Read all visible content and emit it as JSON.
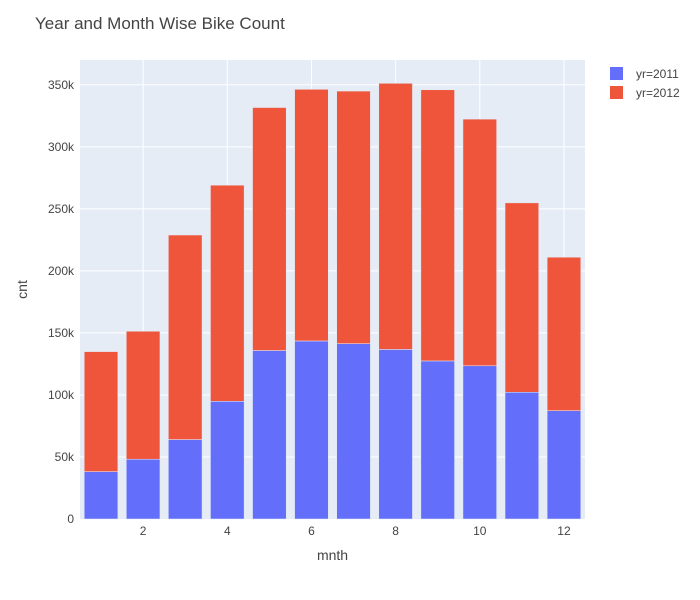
{
  "chart_data": {
    "type": "bar",
    "stacked": true,
    "title": "Year and Month Wise Bike Count",
    "xlabel": "mnth",
    "ylabel": "cnt",
    "x": [
      1,
      2,
      3,
      4,
      5,
      6,
      7,
      8,
      9,
      10,
      11,
      12
    ],
    "x_ticks": [
      2,
      4,
      6,
      8,
      10,
      12
    ],
    "x_tick_labels": [
      "2",
      "4",
      "6",
      "8",
      "10",
      "12"
    ],
    "xlim": [
      0.5,
      12.5
    ],
    "ylim": [
      0,
      370000
    ],
    "y_ticks": [
      0,
      50000,
      100000,
      150000,
      200000,
      250000,
      300000,
      350000
    ],
    "y_tick_labels": [
      "0",
      "50k",
      "100k",
      "150k",
      "200k",
      "250k",
      "300k",
      "350k"
    ],
    "grid": true,
    "legend_position": "top-right",
    "series": [
      {
        "name": "yr=2011",
        "color": "#636efa",
        "values": [
          38189,
          48215,
          64045,
          94870,
          135821,
          143512,
          141341,
          136691,
          127418,
          123511,
          102167,
          87323
        ]
      },
      {
        "name": "yr=2012",
        "color": "#ef553b",
        "values": [
          96744,
          103137,
          164875,
          174224,
          195865,
          202830,
          203607,
          214503,
          218573,
          198841,
          152664,
          123713
        ]
      }
    ]
  }
}
